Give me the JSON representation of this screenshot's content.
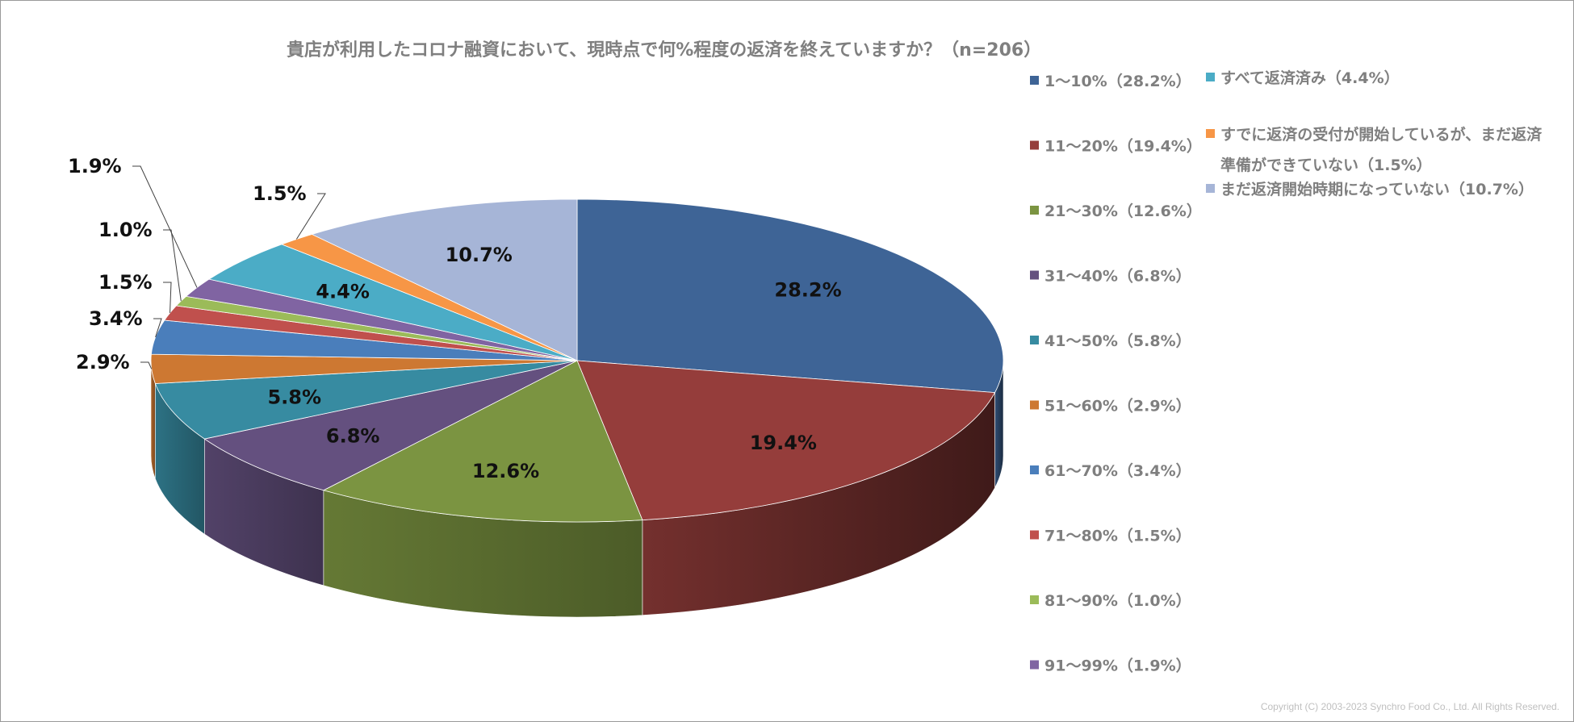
{
  "chart_data": {
    "type": "pie",
    "title": "貴店が利用したコロナ融資において、現時点で何%程度の返済を終えていますか？（n=206）",
    "slices": [
      {
        "label": "1～10%（28.2%）",
        "value": 28.2,
        "data_label": "28.2%",
        "color": "#3e6496"
      },
      {
        "label": "11～20%（19.4%）",
        "value": 19.4,
        "data_label": "19.4%",
        "color": "#953d3b"
      },
      {
        "label": "21～30%（12.6%）",
        "value": 12.6,
        "data_label": "12.6%",
        "color": "#7b9441"
      },
      {
        "label": "31～40%（6.8%）",
        "value": 6.8,
        "data_label": "6.8%",
        "color": "#64507f"
      },
      {
        "label": "41～50%（5.8%）",
        "value": 5.8,
        "data_label": "5.8%",
        "color": "#378ba1"
      },
      {
        "label": "51～60%（2.9%）",
        "value": 2.9,
        "data_label": "2.9%",
        "color": "#cd7832"
      },
      {
        "label": "61～70%（3.4%）",
        "value": 3.4,
        "data_label": "3.4%",
        "color": "#4a7ebb"
      },
      {
        "label": "71～80%（1.5%）",
        "value": 1.5,
        "data_label": "1.5%",
        "color": "#c0504d"
      },
      {
        "label": "81～90%（1.0%）",
        "value": 1.0,
        "data_label": "1.0%",
        "color": "#9bbb59"
      },
      {
        "label": "91～99%（1.9%）",
        "value": 1.9,
        "data_label": "1.9%",
        "color": "#8064a2"
      },
      {
        "label": "すべて返済済み（4.4%）",
        "value": 4.4,
        "data_label": "4.4%",
        "color": "#4bacc6"
      },
      {
        "label": "すでに返済の受付が開始しているが、まだ返済準備ができていない（1.5%）",
        "value": 1.5,
        "data_label": "1.5%",
        "color": "#f79646"
      },
      {
        "label": "まだ返済開始時期になっていない（10.7%）",
        "value": 10.7,
        "data_label": "10.7%",
        "color": "#a6b5d7"
      }
    ],
    "legend_position": "right"
  },
  "copyright": "Copyright (C) 2003-2023 Synchro Food Co., Ltd. All Rights Reserved."
}
